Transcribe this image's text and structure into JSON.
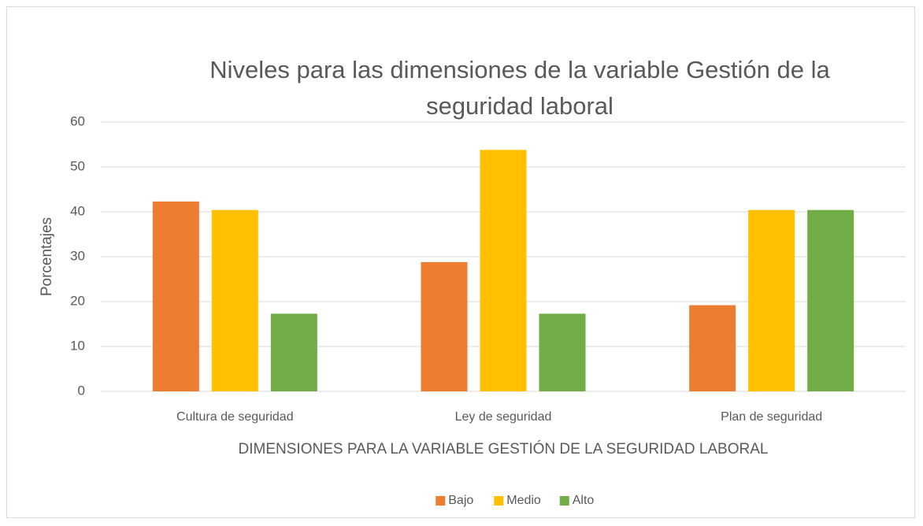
{
  "chart_data": {
    "type": "bar",
    "title": "Niveles para las dimensiones de la variable Gestión de la seguridad laboral",
    "x_label": "DIMENSIONES PARA LA VARIABLE GESTIÓN DE LA SEGURIDAD LABORAL",
    "y_label": "Porcentajes",
    "categories": [
      "Cultura de seguridad",
      "Ley de seguridad",
      "Plan de seguridad"
    ],
    "series": [
      {
        "name": "Bajo",
        "color": "#ed7d31",
        "values": [
          42.3,
          28.8,
          19.2
        ]
      },
      {
        "name": "Medio",
        "color": "#ffc000",
        "values": [
          40.4,
          53.8,
          40.4
        ]
      },
      {
        "name": "Alto",
        "color": "#70ad47",
        "values": [
          17.3,
          17.3,
          40.4
        ]
      }
    ],
    "ylim": [
      0,
      60
    ],
    "yticks": [
      0,
      10,
      20,
      30,
      40,
      50,
      60
    ],
    "grid": true,
    "legend": "bottom"
  }
}
